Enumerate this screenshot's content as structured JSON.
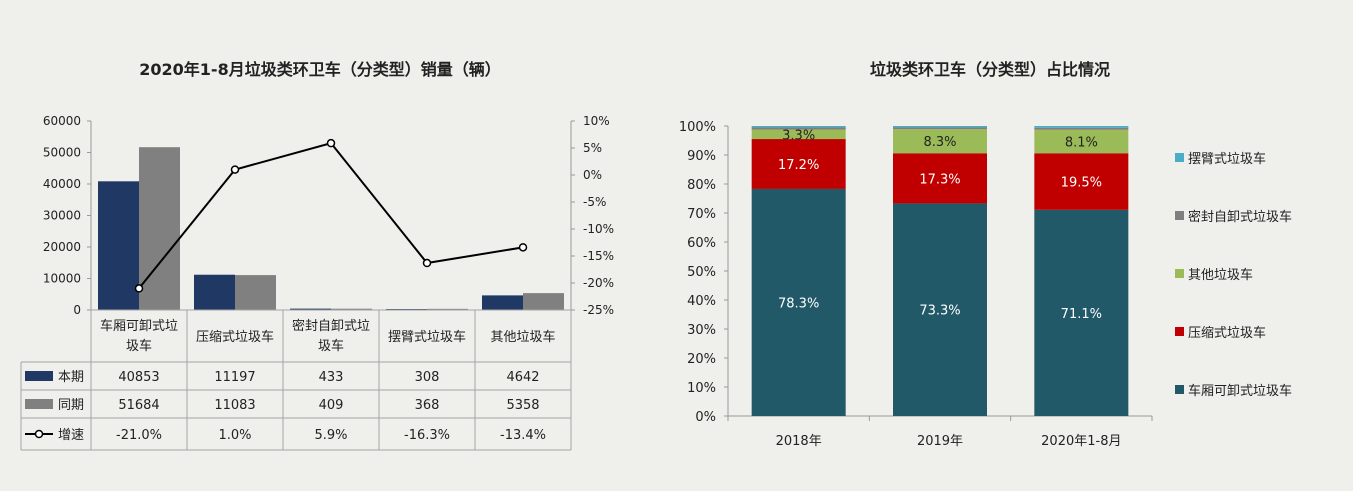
{
  "chart_data": [
    {
      "type": "bar",
      "title": "2020年1-8月垃圾类环卫车（分类型）销量（辆）",
      "categories": [
        "车厢可卸式垃圾车",
        "压缩式垃圾车",
        "密封自卸式垃圾车",
        "摆臂式垃圾车",
        "其他垃圾车"
      ],
      "category_lines": [
        [
          "车厢可卸式垃",
          "圾车"
        ],
        [
          "压缩式垃圾车"
        ],
        [
          "密封自卸式垃",
          "圾车"
        ],
        [
          "摆臂式垃圾车"
        ],
        [
          "其他垃圾车"
        ]
      ],
      "series": [
        {
          "name": "本期",
          "kind": "bar",
          "color": "#203864",
          "values": [
            40853,
            11197,
            433,
            308,
            4642
          ],
          "labels": [
            "40853",
            "11197",
            "433",
            "308",
            "4642"
          ]
        },
        {
          "name": "同期",
          "kind": "bar",
          "color": "#808080",
          "values": [
            51684,
            11083,
            409,
            368,
            5358
          ],
          "labels": [
            "51684",
            "11083",
            "409",
            "368",
            "5358"
          ]
        },
        {
          "name": "增速",
          "kind": "line",
          "axis": "right",
          "color": "#000000",
          "values": [
            -21.0,
            1.0,
            5.9,
            -16.3,
            -13.4
          ],
          "labels": [
            "-21.0%",
            "1.0%",
            "5.9%",
            "-16.3%",
            "-13.4%"
          ]
        }
      ],
      "ylim": [
        0,
        60000
      ],
      "yticks": [
        "0",
        "10000",
        "20000",
        "30000",
        "40000",
        "50000",
        "60000"
      ],
      "y2lim": [
        -25,
        10
      ],
      "y2ticks": [
        "-25%",
        "-20%",
        "-15%",
        "-10%",
        "-5%",
        "0%",
        "5%",
        "10%"
      ],
      "data_table": true
    },
    {
      "type": "bar",
      "stacked": true,
      "title": "垃圾类环卫车（分类型）占比情况",
      "categories": [
        "2018年",
        "2019年",
        "2020年1-8月"
      ],
      "series": [
        {
          "name": "车厢可卸式垃圾车",
          "color": "#215968",
          "values": [
            78.3,
            73.3,
            71.1
          ],
          "labels": [
            "78.3%",
            "73.3%",
            "71.1%"
          ]
        },
        {
          "name": "压缩式垃圾车",
          "color": "#c00000",
          "values": [
            17.2,
            17.3,
            19.5
          ],
          "labels": [
            "17.2%",
            "17.3%",
            "19.5%"
          ]
        },
        {
          "name": "其他垃圾车",
          "color": "#9bbb59",
          "values": [
            3.3,
            8.3,
            8.1
          ],
          "labels": [
            "3.3%",
            "8.3%",
            "8.1%"
          ]
        },
        {
          "name": "密封自卸式垃圾车",
          "color": "#7f7f7f",
          "values": [
            0.7,
            0.6,
            0.7
          ],
          "labels": [
            "",
            "",
            ""
          ]
        },
        {
          "name": "摆臂式垃圾车",
          "color": "#4bacc6",
          "values": [
            0.5,
            0.5,
            0.6
          ],
          "labels": [
            "",
            "",
            ""
          ]
        }
      ],
      "ylim": [
        0,
        100
      ],
      "yticks": [
        "0%",
        "10%",
        "20%",
        "30%",
        "40%",
        "50%",
        "60%",
        "70%",
        "80%",
        "90%",
        "100%"
      ],
      "legend_order": [
        "摆臂式垃圾车",
        "密封自卸式垃圾车",
        "其他垃圾车",
        "压缩式垃圾车",
        "车厢可卸式垃圾车"
      ],
      "legend": "right"
    }
  ]
}
